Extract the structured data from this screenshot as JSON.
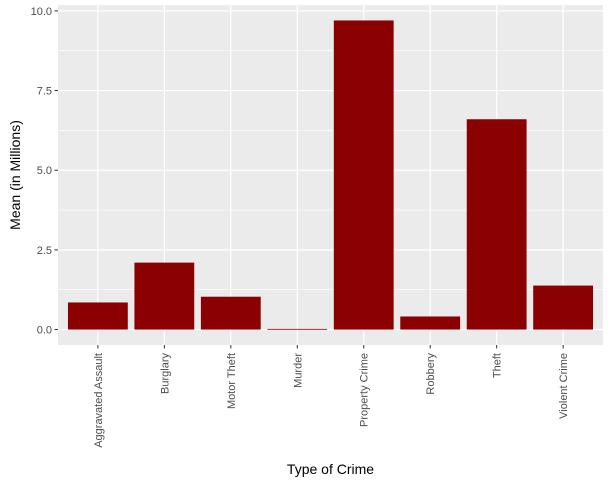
{
  "chart_data": {
    "type": "bar",
    "categories": [
      "Aggravated Assault",
      "Burglary",
      "Motor Theft",
      "Murder",
      "Property Crime",
      "Robbery",
      "Theft",
      "Violent Crime"
    ],
    "values": [
      0.85,
      2.1,
      1.03,
      0.02,
      9.7,
      0.41,
      6.6,
      1.38
    ],
    "xlabel": "Type of Crime",
    "ylabel": "Mean (in Millions)",
    "yticks": [
      "0.0",
      "2.5",
      "5.0",
      "7.5",
      "10.0"
    ],
    "ylim": [
      -0.485,
      10.185
    ],
    "grid": true,
    "bar_color": "#8b0000",
    "panel_color": "#ebebeb",
    "grid_color": "#ffffff"
  }
}
